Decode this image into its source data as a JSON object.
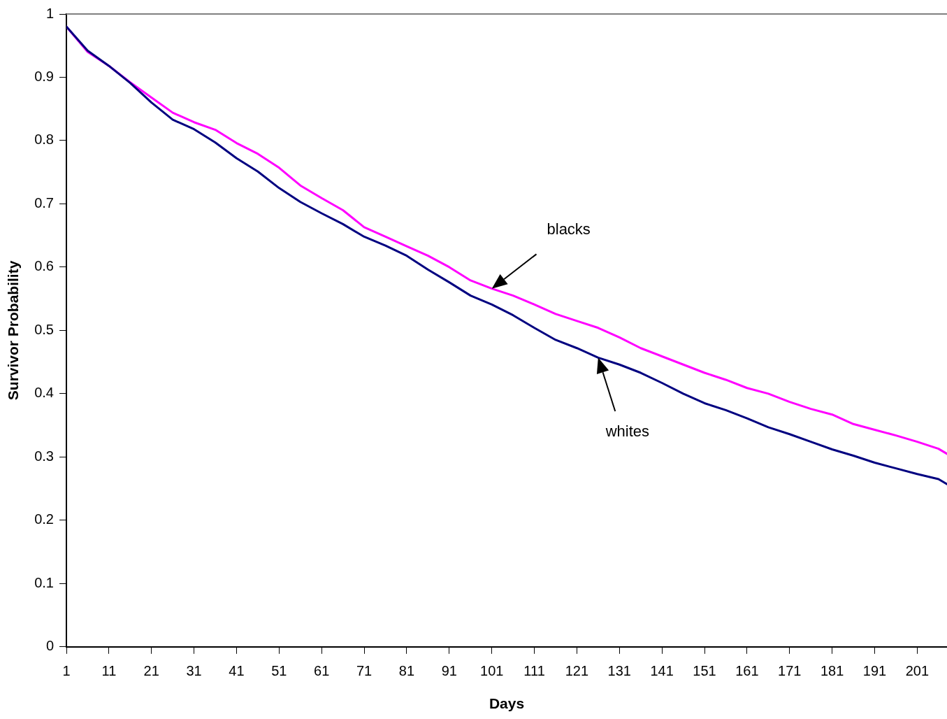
{
  "chart_data": {
    "type": "line",
    "xlabel": "Days",
    "ylabel": "Survivor Probability",
    "x": [
      1,
      6,
      11,
      16,
      21,
      26,
      31,
      36,
      41,
      46,
      51,
      56,
      61,
      66,
      71,
      76,
      81,
      86,
      91,
      96,
      101,
      106,
      111,
      116,
      121,
      126,
      131,
      136,
      141,
      146,
      151,
      156,
      161,
      166,
      171,
      176,
      181,
      186,
      191,
      196,
      201,
      206,
      208
    ],
    "series": [
      {
        "color": "#000080",
        "values": [
          0.98,
          0.942,
          0.918,
          0.891,
          0.86,
          0.833,
          0.818,
          0.797,
          0.772,
          0.751,
          0.725,
          0.703,
          0.685,
          0.668,
          0.648,
          0.634,
          0.618,
          0.596,
          0.576,
          0.555,
          0.541,
          0.524,
          0.504,
          0.485,
          0.472,
          0.457,
          0.446,
          0.433,
          0.417,
          0.4,
          0.385,
          0.374,
          0.361,
          0.347,
          0.336,
          0.324,
          0.312,
          0.302,
          0.291,
          0.282,
          0.273,
          0.265,
          0.257
        ]
      },
      {
        "color": "#ff00ff",
        "values": [
          0.98,
          0.94,
          0.918,
          0.892,
          0.868,
          0.844,
          0.829,
          0.817,
          0.796,
          0.779,
          0.757,
          0.729,
          0.709,
          0.69,
          0.663,
          0.648,
          0.633,
          0.618,
          0.6,
          0.579,
          0.566,
          0.555,
          0.541,
          0.526,
          0.515,
          0.504,
          0.489,
          0.472,
          0.459,
          0.446,
          0.433,
          0.422,
          0.409,
          0.4,
          0.387,
          0.376,
          0.367,
          0.352,
          0.343,
          0.334,
          0.324,
          0.313,
          0.305
        ]
      }
    ],
    "annotations": [
      "blacks",
      "whites"
    ],
    "xlim": [
      1,
      208
    ],
    "xticks": [
      1,
      11,
      21,
      31,
      41,
      51,
      61,
      71,
      81,
      91,
      101,
      111,
      121,
      131,
      141,
      151,
      161,
      171,
      181,
      191,
      201
    ],
    "ylim": [
      0,
      1
    ],
    "yticks": [
      0,
      0.1,
      0.2,
      0.3,
      0.4,
      0.5,
      0.6,
      0.7,
      0.8,
      0.9,
      1
    ],
    "grid": false,
    "legend": false,
    "marker": "none",
    "line_style": "solid"
  }
}
